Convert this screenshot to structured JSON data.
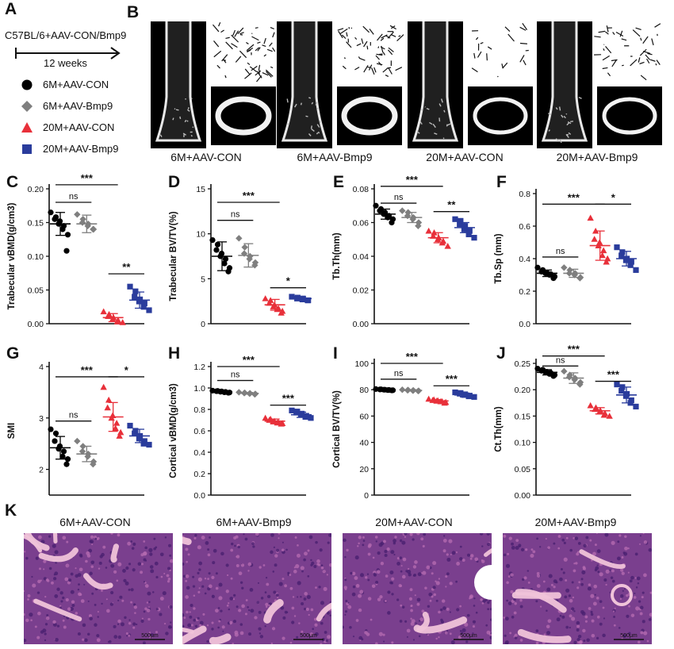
{
  "panelA": {
    "letter": "A",
    "design": "C57BL/6+AAV-CON/Bmp9",
    "duration": "12 weeks",
    "legend": [
      {
        "label": "6M+AAV-CON",
        "marker": "circle",
        "color": "#000000"
      },
      {
        "label": "6M+AAV-Bmp9",
        "marker": "diamond",
        "color": "#7f7f7f"
      },
      {
        "label": "20M+AAV-CON",
        "marker": "triangle",
        "color": "#e8303a"
      },
      {
        "label": "20M+AAV-Bmp9",
        "marker": "square",
        "color": "#2a3c9c"
      }
    ]
  },
  "panelB": {
    "letter": "B",
    "captions": [
      "6M+AAV-CON",
      "6M+AAV-Bmp9",
      "20M+AAV-CON",
      "20M+AAV-Bmp9"
    ]
  },
  "panelK": {
    "letter": "K",
    "titles": [
      "6M+AAV-CON",
      "6M+AAV-Bmp9",
      "20M+AAV-CON",
      "20M+AAV-Bmp9"
    ],
    "scalebar_label": "500μm"
  },
  "colors": {
    "g1": "#000000",
    "g2": "#7f7f7f",
    "g3": "#e8303a",
    "g4": "#2a3c9c"
  },
  "chart_data": [
    {
      "id": "C",
      "letter": "C",
      "type": "scatter",
      "ylabel": "Trabecular  vBMD(g/cm3)",
      "ylim": [
        0,
        0.2
      ],
      "yticks": [
        0.0,
        0.05,
        0.1,
        0.15,
        0.2
      ],
      "ytick_labels": [
        "0.00",
        "0.05",
        "0.10",
        "0.15",
        "0.20"
      ],
      "series": [
        {
          "mean": 0.148,
          "sd": 0.017,
          "points": [
            0.165,
            0.158,
            0.155,
            0.152,
            0.148,
            0.145,
            0.14,
            0.132,
            0.108
          ]
        },
        {
          "mean": 0.148,
          "sd": 0.013,
          "points": [
            0.162,
            0.155,
            0.15,
            0.148,
            0.145,
            0.14,
            0.14
          ]
        },
        {
          "mean": 0.009,
          "sd": 0.006,
          "points": [
            0.018,
            0.014,
            0.011,
            0.009,
            0.007,
            0.005,
            0.003,
            0.002
          ]
        },
        {
          "mean": 0.035,
          "sd": 0.012,
          "points": [
            0.055,
            0.048,
            0.04,
            0.036,
            0.033,
            0.03,
            0.025,
            0.02
          ]
        }
      ],
      "sig": [
        {
          "from": 0,
          "to": 1,
          "label": "ns",
          "y": 0.18
        },
        {
          "from": 0,
          "to": 2,
          "label": "***",
          "y": 0.206
        },
        {
          "from": 2,
          "to": 3,
          "label": "**",
          "y": 0.074
        }
      ]
    },
    {
      "id": "D",
      "letter": "D",
      "type": "scatter",
      "ylabel": "Trabecular BV/TV(%)",
      "ylim": [
        0,
        15
      ],
      "yticks": [
        0,
        5,
        10,
        15
      ],
      "ytick_labels": [
        "0",
        "5",
        "10",
        "15"
      ],
      "series": [
        {
          "mean": 7.5,
          "sd": 1.6,
          "points": [
            9.3,
            8.8,
            8.2,
            7.8,
            7.5,
            7.2,
            6.7,
            6.2,
            5.8
          ]
        },
        {
          "mean": 7.6,
          "sd": 1.3,
          "points": [
            9.5,
            8.5,
            7.8,
            7.5,
            7.2,
            6.8,
            6.5
          ]
        },
        {
          "mean": 2.1,
          "sd": 0.6,
          "points": [
            2.8,
            2.6,
            2.3,
            2.1,
            1.9,
            1.7,
            1.6,
            1.4,
            1.2
          ]
        },
        {
          "mean": 2.8,
          "sd": 0.2,
          "points": [
            3.0,
            2.9,
            2.8,
            2.8,
            2.7,
            2.6,
            2.6
          ]
        }
      ],
      "sig": [
        {
          "from": 0,
          "to": 1,
          "label": "ns",
          "y": 11.5
        },
        {
          "from": 0,
          "to": 2,
          "label": "***",
          "y": 13.5
        },
        {
          "from": 2,
          "to": 3,
          "label": "*",
          "y": 4.0
        }
      ]
    },
    {
      "id": "E",
      "letter": "E",
      "type": "scatter",
      "ylabel": "Tb.Th(mm)",
      "ylim": [
        0,
        0.08
      ],
      "yticks": [
        0.0,
        0.02,
        0.04,
        0.06,
        0.08
      ],
      "ytick_labels": [
        "0.00",
        "0.02",
        "0.04",
        "0.06",
        "0.08"
      ],
      "series": [
        {
          "mean": 0.065,
          "sd": 0.003,
          "points": [
            0.07,
            0.068,
            0.067,
            0.066,
            0.065,
            0.064,
            0.063,
            0.062,
            0.06
          ]
        },
        {
          "mean": 0.063,
          "sd": 0.003,
          "points": [
            0.067,
            0.066,
            0.064,
            0.063,
            0.062,
            0.06,
            0.058
          ]
        },
        {
          "mean": 0.051,
          "sd": 0.003,
          "points": [
            0.055,
            0.054,
            0.052,
            0.051,
            0.05,
            0.049,
            0.048,
            0.046
          ]
        },
        {
          "mean": 0.057,
          "sd": 0.003,
          "points": [
            0.062,
            0.061,
            0.059,
            0.058,
            0.056,
            0.055,
            0.053,
            0.051
          ]
        }
      ],
      "sig": [
        {
          "from": 0,
          "to": 1,
          "label": "ns",
          "y": 0.0715
        },
        {
          "from": 0,
          "to": 2,
          "label": "***",
          "y": 0.0815
        },
        {
          "from": 2,
          "to": 3,
          "label": "**",
          "y": 0.0665
        }
      ]
    },
    {
      "id": "F",
      "letter": "F",
      "type": "scatter",
      "ylabel": "Tb.Sp (mm)",
      "ylim": [
        0,
        0.8
      ],
      "yticks": [
        0.0,
        0.2,
        0.4,
        0.6,
        0.8
      ],
      "ytick_labels": [
        "0.0",
        "0.2",
        "0.4",
        "0.6",
        "0.8"
      ],
      "series": [
        {
          "mean": 0.31,
          "sd": 0.02,
          "points": [
            0.345,
            0.33,
            0.32,
            0.315,
            0.31,
            0.305,
            0.3,
            0.29,
            0.28
          ]
        },
        {
          "mean": 0.31,
          "sd": 0.025,
          "points": [
            0.345,
            0.33,
            0.31,
            0.31,
            0.3,
            0.285,
            0.28
          ]
        },
        {
          "mean": 0.48,
          "sd": 0.09,
          "points": [
            0.65,
            0.57,
            0.52,
            0.5,
            0.48,
            0.45,
            0.42,
            0.4,
            0.38
          ]
        },
        {
          "mean": 0.4,
          "sd": 0.045,
          "points": [
            0.47,
            0.44,
            0.42,
            0.4,
            0.39,
            0.38,
            0.36,
            0.33
          ]
        }
      ],
      "sig": [
        {
          "from": 0,
          "to": 1,
          "label": "ns",
          "y": 0.41
        },
        {
          "from": 0,
          "to": 2,
          "label": "***",
          "y": 0.735
        },
        {
          "from": 2,
          "to": 3,
          "label": "*",
          "y": 0.735
        }
      ]
    },
    {
      "id": "G",
      "letter": "G",
      "type": "scatter",
      "ylabel": "SMI",
      "ylim": [
        1.5,
        4
      ],
      "yticks": [
        2,
        3,
        4
      ],
      "ytick_labels": [
        "2",
        "3",
        "4"
      ],
      "series": [
        {
          "mean": 2.42,
          "sd": 0.22,
          "points": [
            2.78,
            2.7,
            2.55,
            2.45,
            2.4,
            2.35,
            2.25,
            2.2,
            2.1
          ]
        },
        {
          "mean": 2.3,
          "sd": 0.15,
          "points": [
            2.55,
            2.45,
            2.35,
            2.3,
            2.25,
            2.15,
            2.1
          ]
        },
        {
          "mean": 3.02,
          "sd": 0.28,
          "points": [
            3.6,
            3.35,
            3.2,
            3.05,
            3.0,
            2.9,
            2.8,
            2.72,
            2.65
          ]
        },
        {
          "mean": 2.65,
          "sd": 0.13,
          "points": [
            2.85,
            2.75,
            2.7,
            2.65,
            2.6,
            2.55,
            2.5,
            2.48
          ]
        }
      ],
      "sig": [
        {
          "from": 0,
          "to": 1,
          "label": "ns",
          "y": 2.94
        },
        {
          "from": 0,
          "to": 2,
          "label": "***",
          "y": 3.8
        },
        {
          "from": 2,
          "to": 3,
          "label": "*",
          "y": 3.8
        }
      ]
    },
    {
      "id": "H",
      "letter": "H",
      "type": "scatter",
      "ylabel": "Cortical vBMD(g/cm3)",
      "ylim": [
        0,
        1.2
      ],
      "yticks": [
        0.0,
        0.2,
        0.4,
        0.6,
        0.8,
        1.0,
        1.2
      ],
      "ytick_labels": [
        "0.0",
        "0.2",
        "0.4",
        "0.6",
        "0.8",
        "1.0",
        "1.2"
      ],
      "series": [
        {
          "mean": 0.965,
          "sd": 0.01,
          "points": [
            0.975,
            0.972,
            0.97,
            0.968,
            0.965,
            0.963,
            0.96,
            0.958,
            0.955
          ]
        },
        {
          "mean": 0.95,
          "sd": 0.008,
          "points": [
            0.96,
            0.955,
            0.952,
            0.95,
            0.948,
            0.945,
            0.94
          ]
        },
        {
          "mean": 0.69,
          "sd": 0.02,
          "points": [
            0.72,
            0.71,
            0.7,
            0.69,
            0.685,
            0.68,
            0.675,
            0.67,
            0.665
          ]
        },
        {
          "mean": 0.75,
          "sd": 0.025,
          "points": [
            0.79,
            0.78,
            0.77,
            0.76,
            0.75,
            0.74,
            0.73,
            0.72
          ]
        }
      ],
      "sig": [
        {
          "from": 0,
          "to": 1,
          "label": "ns",
          "y": 1.07
        },
        {
          "from": 0,
          "to": 2,
          "label": "***",
          "y": 1.2
        },
        {
          "from": 2,
          "to": 3,
          "label": "***",
          "y": 0.84
        }
      ]
    },
    {
      "id": "I",
      "letter": "I",
      "type": "scatter",
      "ylabel": "Cortical  BV/TV(%)",
      "ylim": [
        0,
        100
      ],
      "yticks": [
        0,
        20,
        40,
        60,
        80,
        100
      ],
      "ytick_labels": [
        "0",
        "20",
        "40",
        "60",
        "80",
        "100"
      ],
      "series": [
        {
          "mean": 80,
          "sd": 0.5,
          "points": [
            80.5,
            80.3,
            80.2,
            80,
            80,
            79.8,
            79.7,
            79.6,
            79.5
          ]
        },
        {
          "mean": 79.5,
          "sd": 0.5,
          "points": [
            80,
            79.8,
            79.6,
            79.5,
            79.3,
            79.2,
            79.0
          ]
        },
        {
          "mean": 71.5,
          "sd": 1.0,
          "points": [
            73,
            72.5,
            72,
            71.8,
            71.5,
            71.2,
            71,
            70.5,
            70
          ]
        },
        {
          "mean": 76,
          "sd": 1.5,
          "points": [
            78,
            77.5,
            77,
            76.5,
            76,
            75.5,
            75,
            74.5
          ]
        }
      ],
      "sig": [
        {
          "from": 0,
          "to": 1,
          "label": "ns",
          "y": 88
        },
        {
          "from": 0,
          "to": 2,
          "label": "***",
          "y": 100
        },
        {
          "from": 2,
          "to": 3,
          "label": "***",
          "y": 83
        }
      ]
    },
    {
      "id": "J",
      "letter": "J",
      "type": "scatter",
      "ylabel": "Ct.Th(mm)",
      "ylim": [
        0,
        0.25
      ],
      "yticks": [
        0.0,
        0.05,
        0.1,
        0.15,
        0.2,
        0.25
      ],
      "ytick_labels": [
        "0.00",
        "0.05",
        "0.10",
        "0.15",
        "0.20",
        "0.25"
      ],
      "series": [
        {
          "mean": 0.233,
          "sd": 0.005,
          "points": [
            0.24,
            0.238,
            0.236,
            0.234,
            0.233,
            0.232,
            0.23,
            0.228,
            0.226
          ]
        },
        {
          "mean": 0.222,
          "sd": 0.01,
          "points": [
            0.235,
            0.228,
            0.224,
            0.222,
            0.219,
            0.214,
            0.21
          ]
        },
        {
          "mean": 0.16,
          "sd": 0.006,
          "points": [
            0.17,
            0.166,
            0.163,
            0.16,
            0.158,
            0.155,
            0.152,
            0.15
          ]
        },
        {
          "mean": 0.19,
          "sd": 0.015,
          "points": [
            0.21,
            0.205,
            0.198,
            0.192,
            0.188,
            0.18,
            0.175,
            0.168
          ]
        }
      ],
      "sig": [
        {
          "from": 0,
          "to": 1,
          "label": "ns",
          "y": 0.245
        },
        {
          "from": 0,
          "to": 2,
          "label": "***",
          "y": 0.264
        },
        {
          "from": 2,
          "to": 3,
          "label": "***",
          "y": 0.216
        }
      ]
    }
  ]
}
